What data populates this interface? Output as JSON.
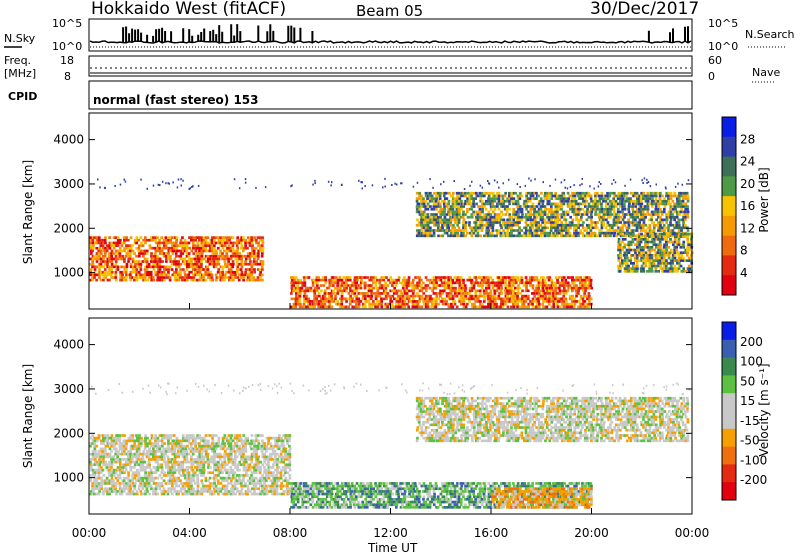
{
  "header": {
    "title": "Hokkaido West (fitACF)",
    "beam": "Beam 05",
    "date": "30/Dec/2017"
  },
  "noise_panel": {
    "left_label": "N.Sky",
    "right_label": "N.Search",
    "tick_top": "10^5",
    "tick_bottom": "10^0"
  },
  "freq_panel": {
    "left_label_line1": "Freq.",
    "left_label_line2": "[MHz]",
    "left_tick_top": "18",
    "left_tick_bottom": "8",
    "right_label": "Nave",
    "right_tick_top": "60",
    "right_tick_bottom": "0"
  },
  "cpid_panel": {
    "label": "CPID",
    "mode_text": "normal (fast stereo) 153"
  },
  "xaxis": {
    "title": "Time UT",
    "ticks": [
      "00:00",
      "04:00",
      "08:00",
      "12:00",
      "16:00",
      "20:00",
      "00:00"
    ]
  },
  "chart_data": [
    {
      "type": "heatmap",
      "name_shown": "",
      "ylabel": "Slant Range [km]",
      "yticks": [
        1000,
        2000,
        3000,
        4000
      ],
      "ylim": [
        180,
        4600
      ],
      "xlim_hours": [
        0,
        24
      ],
      "colorbar_label": "Power [dB]",
      "colorbar_ticks": [
        "4",
        "8",
        "12",
        "16",
        "20",
        "24",
        "28"
      ],
      "colorbar_colors": [
        "#0a1de6",
        "#2f3fa6",
        "#3e6f59",
        "#4f9a46",
        "#f5c300",
        "#f59a00",
        "#f06a10",
        "#e42a10",
        "#e00010"
      ],
      "regions": [
        {
          "t0": 0.0,
          "t1": 6.9,
          "r0": 800,
          "r1": 1800,
          "level": "high"
        },
        {
          "t0": 8.0,
          "t1": 20.0,
          "r0": 200,
          "r1": 900,
          "level": "high"
        },
        {
          "t0": 13.0,
          "t1": 23.8,
          "r0": 1800,
          "r1": 2800,
          "level": "mid"
        },
        {
          "t0": 21.0,
          "t1": 24.0,
          "r0": 1000,
          "r1": 1900,
          "level": "mid"
        }
      ]
    },
    {
      "type": "heatmap",
      "name_shown": "",
      "ylabel": "Slant Range [km]",
      "yticks": [
        1000,
        2000,
        3000,
        4000
      ],
      "ylim": [
        180,
        4600
      ],
      "xlim_hours": [
        0,
        24
      ],
      "colorbar_label": "Velocity [m s⁻¹]",
      "colorbar_ticks": [
        "200",
        "100",
        "50",
        "15",
        "-15",
        "-50",
        "-100",
        "-200"
      ],
      "colorbar_colors": [
        "#0a1de6",
        "#3a5fb0",
        "#3a8a50",
        "#5cc040",
        "#c8c8c8",
        "#c8c8c8",
        "#f5a000",
        "#f07010",
        "#e42a10",
        "#e00010"
      ],
      "regions": [
        {
          "t0": 0.0,
          "t1": 8.0,
          "r0": 600,
          "r1": 2000,
          "level": "grey"
        },
        {
          "t0": 8.0,
          "t1": 20.0,
          "r0": 300,
          "r1": 900,
          "level": "green"
        },
        {
          "t0": 13.0,
          "t1": 23.8,
          "r0": 1800,
          "r1": 2800,
          "level": "grey"
        },
        {
          "t0": 16.0,
          "t1": 20.0,
          "r0": 300,
          "r1": 800,
          "level": "orange"
        }
      ]
    }
  ]
}
